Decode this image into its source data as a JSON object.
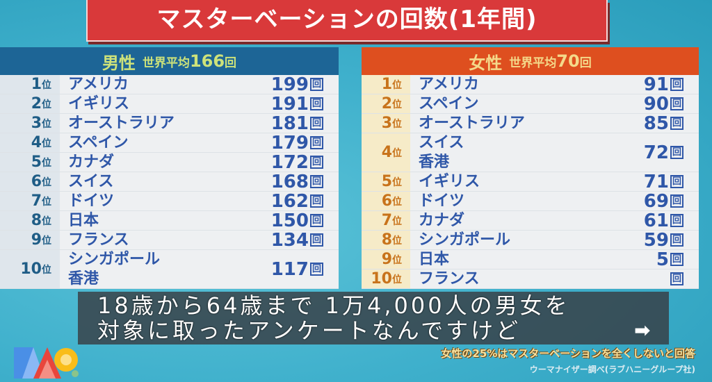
{
  "title": "マスターベーションの回数(1年間)",
  "men": {
    "gender": "男性",
    "avg_label": "世界平均",
    "avg": "166",
    "unit": "回",
    "rows": [
      {
        "rank": "1",
        "names": [
          "アメリカ"
        ],
        "count": "199"
      },
      {
        "rank": "2",
        "names": [
          "イギリス"
        ],
        "count": "191"
      },
      {
        "rank": "3",
        "names": [
          "オーストラリア"
        ],
        "count": "181"
      },
      {
        "rank": "4",
        "names": [
          "スペイン"
        ],
        "count": "179"
      },
      {
        "rank": "5",
        "names": [
          "カナダ"
        ],
        "count": "172"
      },
      {
        "rank": "6",
        "names": [
          "スイス"
        ],
        "count": "168"
      },
      {
        "rank": "7",
        "names": [
          "ドイツ"
        ],
        "count": "162"
      },
      {
        "rank": "8",
        "names": [
          "日本"
        ],
        "count": "150"
      },
      {
        "rank": "9",
        "names": [
          "フランス"
        ],
        "count": "134"
      },
      {
        "rank": "10",
        "names": [
          "シンガポール",
          "香港"
        ],
        "count": "117"
      }
    ]
  },
  "women": {
    "gender": "女性",
    "avg_label": "世界平均",
    "avg": "70",
    "unit": "回",
    "rows": [
      {
        "rank": "1",
        "names": [
          "アメリカ"
        ],
        "count": "91"
      },
      {
        "rank": "2",
        "names": [
          "スペイン"
        ],
        "count": "90"
      },
      {
        "rank": "3",
        "names": [
          "オーストラリア"
        ],
        "count": "85"
      },
      {
        "rank": "4",
        "names": [
          "スイス",
          "香港"
        ],
        "count": "72"
      },
      {
        "rank": "5",
        "names": [
          "イギリス"
        ],
        "count": "71"
      },
      {
        "rank": "6",
        "names": [
          "ドイツ"
        ],
        "count": "69"
      },
      {
        "rank": "7",
        "names": [
          "カナダ"
        ],
        "count": "61"
      },
      {
        "rank": "8",
        "names": [
          "シンガポール"
        ],
        "count": "59"
      },
      {
        "rank": "9",
        "names": [
          "日本"
        ],
        "count": "5"
      },
      {
        "rank": "10",
        "names": [
          "フランス"
        ],
        "count": ""
      }
    ]
  },
  "rank_suffix": "位",
  "note": "女性の25%はマスターベーションを全くしないと回答",
  "source": "ウーマナイザー調べ(ラブハニーグループ社)",
  "subtitle": {
    "line1": "18歳から64歳まで 1万4,000人の男女を",
    "line2": "対象に取ったアンケートなんですけど"
  },
  "arrow_icon": "right-arrow-icon",
  "colors": {
    "title_bg": "#d9393a",
    "men_header": "#1d6596",
    "women_header": "#de4f1f"
  }
}
